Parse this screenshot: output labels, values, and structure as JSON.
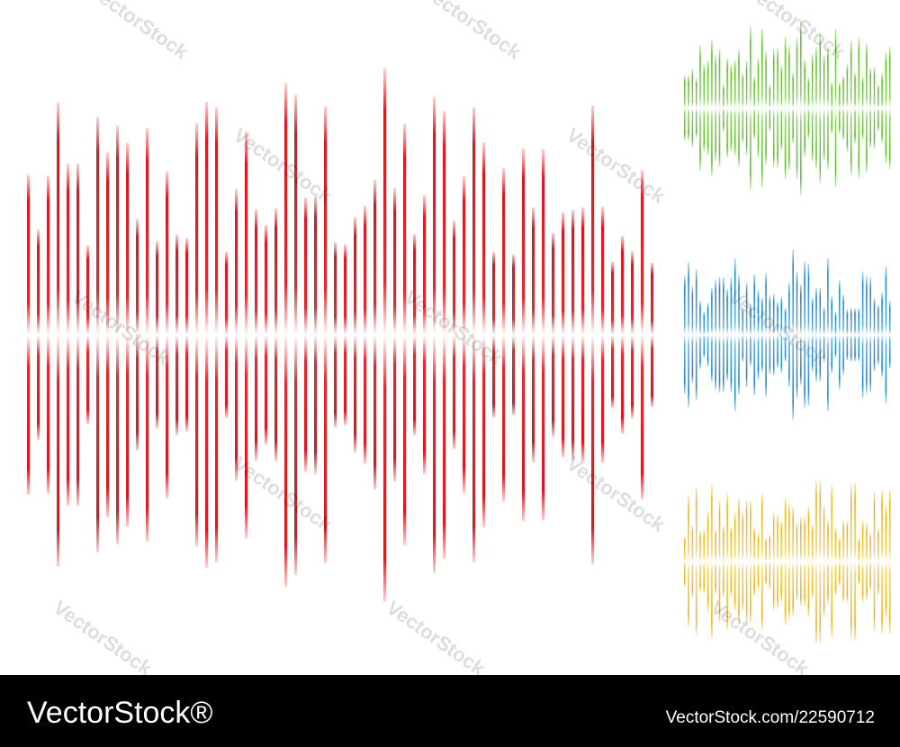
{
  "watermark": "VectorStock",
  "footer": {
    "brand": "VectorStock®",
    "image_id": "VectorStock.com/22590712"
  }
}
